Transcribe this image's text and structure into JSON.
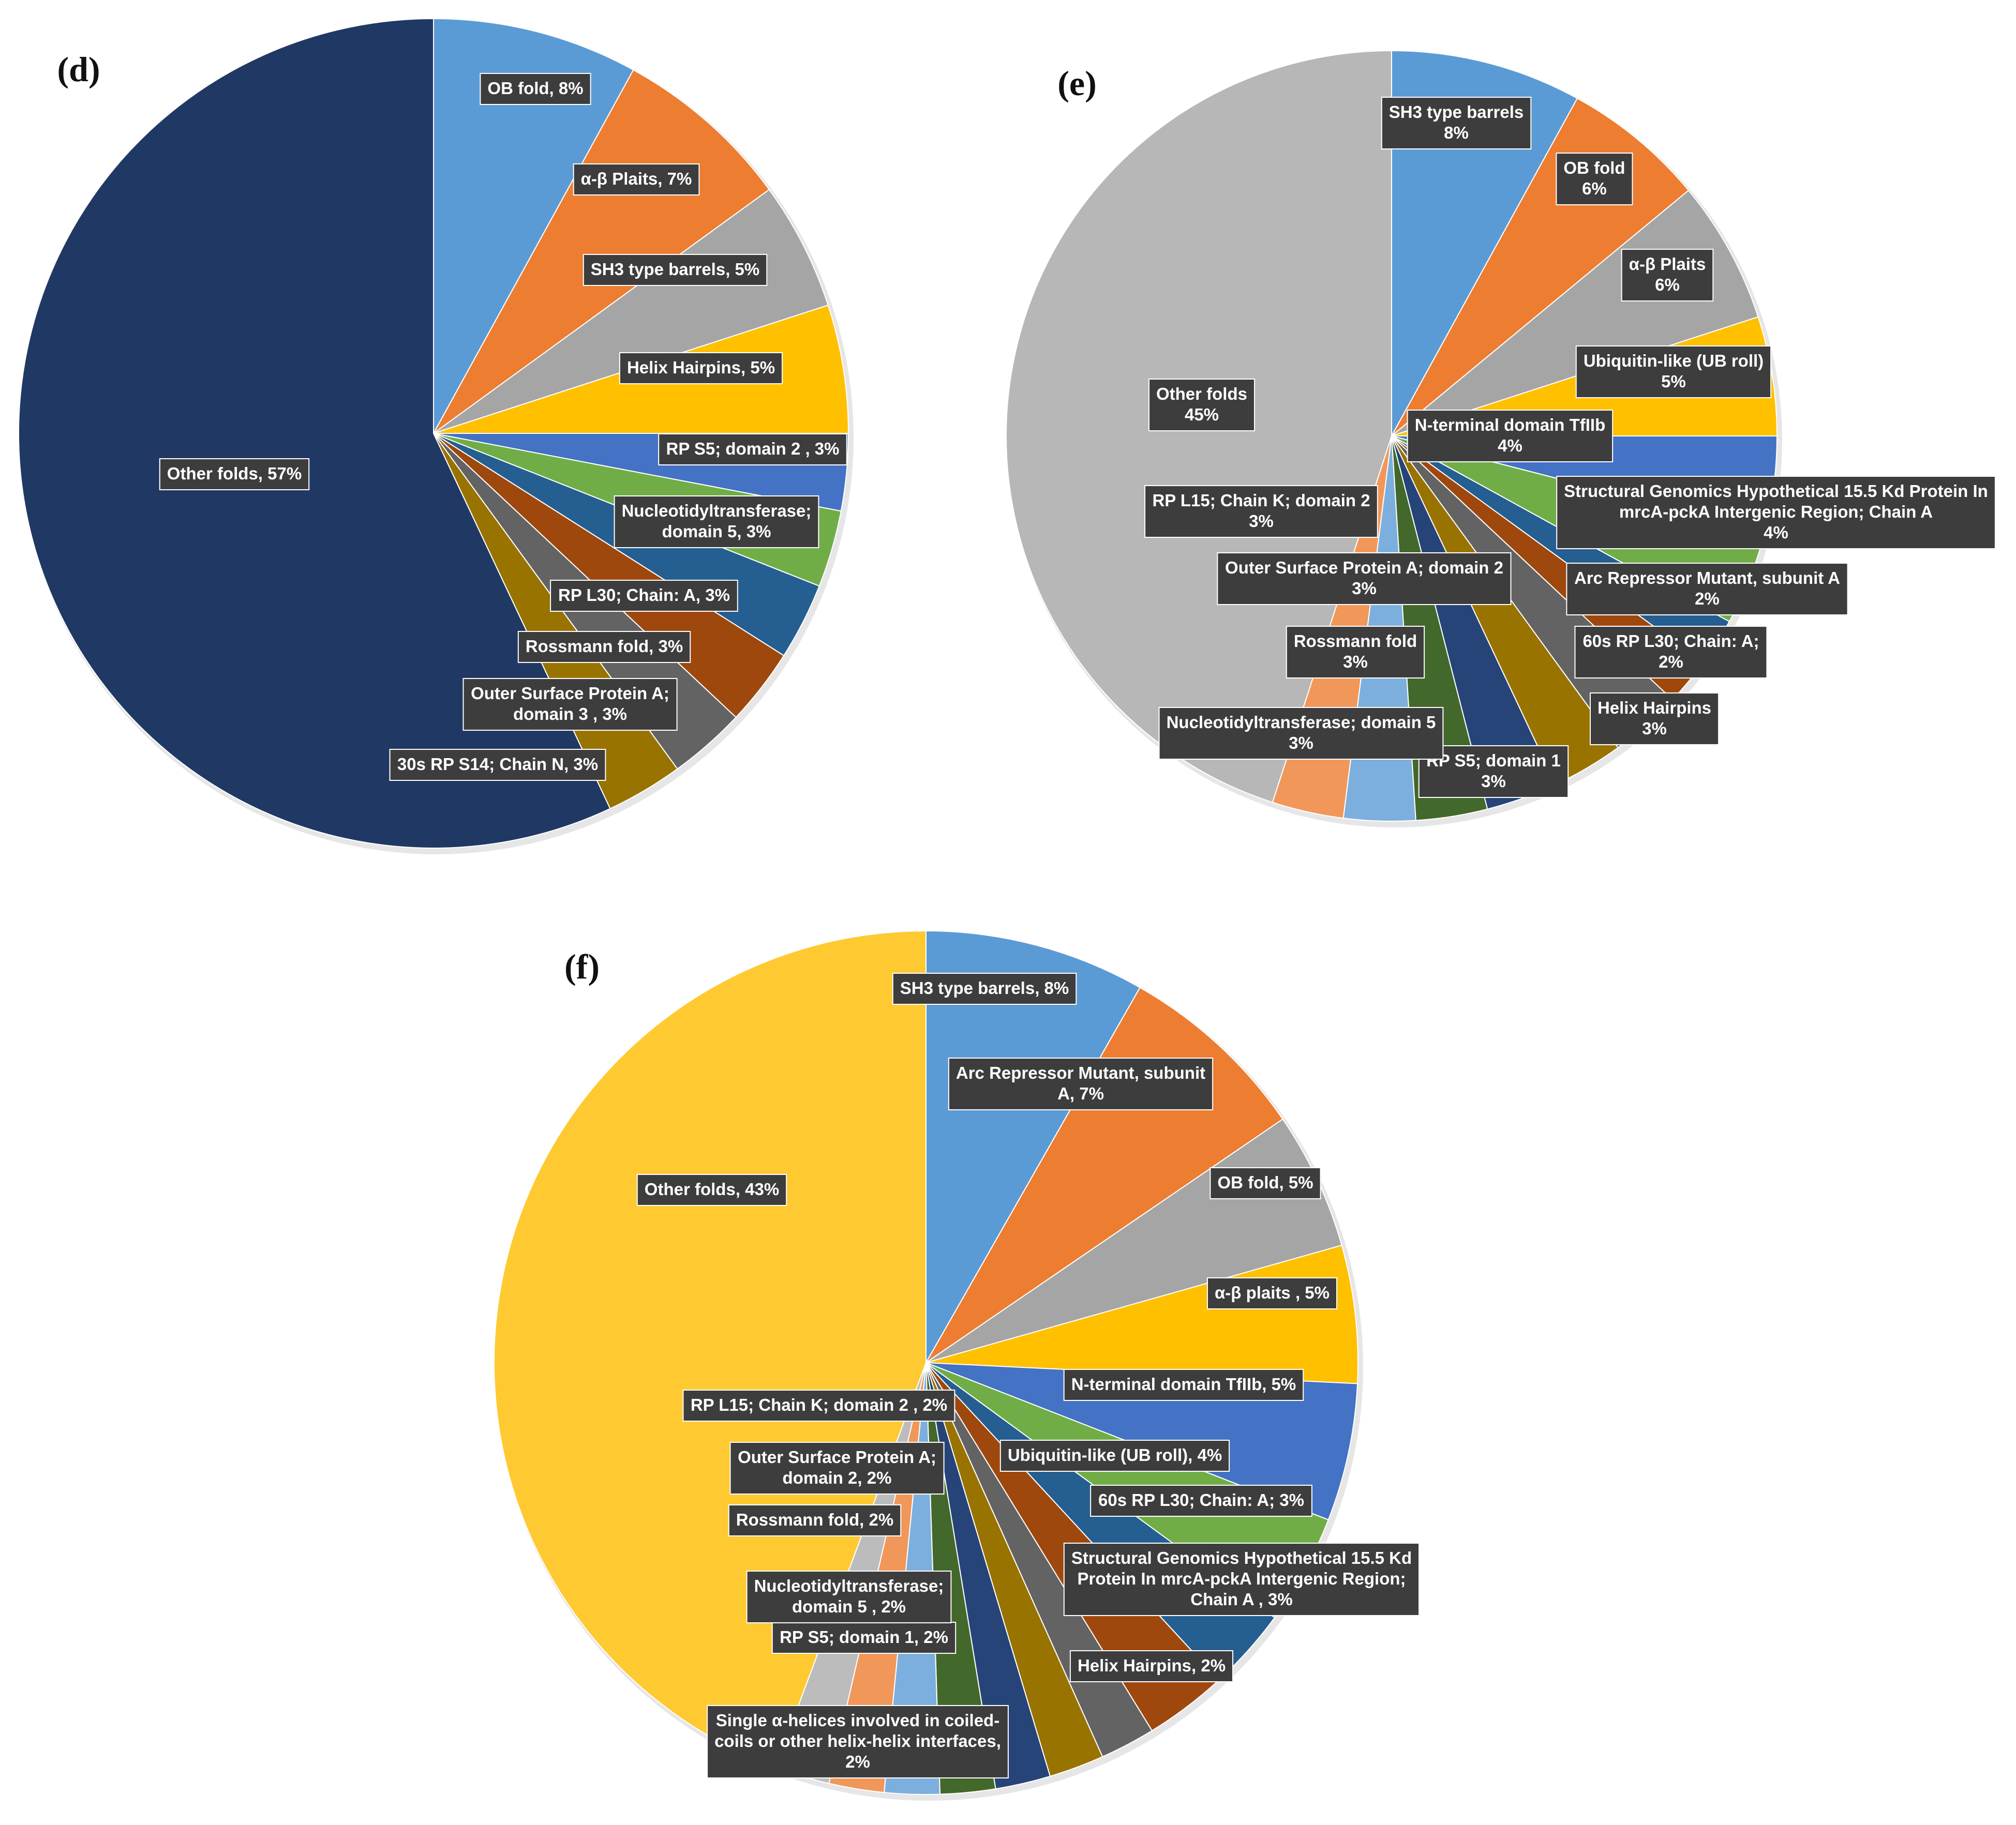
{
  "chart_data": [
    {
      "panel": "(d)",
      "type": "pie",
      "slices": [
        {
          "name": "OB fold",
          "value": 8,
          "color": "#5b9bd5",
          "label_lines": [
            "OB fold, 8%"
          ]
        },
        {
          "name": "α-β Plaits",
          "value": 7,
          "color": "#ed7d31",
          "label_lines": [
            "α-β Plaits, 7%"
          ]
        },
        {
          "name": "SH3 type barrels",
          "value": 5,
          "color": "#a5a5a5",
          "label_lines": [
            "SH3 type barrels, 5%"
          ]
        },
        {
          "name": "Helix Hairpins",
          "value": 5,
          "color": "#ffc000",
          "label_lines": [
            "Helix Hairpins, 5%"
          ]
        },
        {
          "name": "RP S5; domain 2",
          "value": 3,
          "color": "#4472c4",
          "label_lines": [
            "RP S5; domain 2 , 3%"
          ]
        },
        {
          "name": "Nucleotidyltransferase; domain 5",
          "value": 3,
          "color": "#70ad47",
          "label_lines": [
            "Nucleotidyltransferase;",
            "domain 5, 3%"
          ]
        },
        {
          "name": "RP L30; Chain: A",
          "value": 3,
          "color": "#255e91",
          "label_lines": [
            "RP L30; Chain: A, 3%"
          ]
        },
        {
          "name": "Rossmann fold",
          "value": 3,
          "color": "#9e480e",
          "label_lines": [
            "Rossmann fold, 3%"
          ]
        },
        {
          "name": "Outer Surface Protein A; domain 3",
          "value": 3,
          "color": "#636363",
          "label_lines": [
            "Outer Surface Protein A;",
            "domain 3 , 3%"
          ]
        },
        {
          "name": "30s RP S14; Chain N",
          "value": 3,
          "color": "#997300",
          "label_lines": [
            "30s RP S14; Chain N, 3%"
          ]
        },
        {
          "name": "Other folds",
          "value": 57,
          "color": "#203864",
          "label_lines": [
            "Other folds, 57%"
          ]
        }
      ]
    },
    {
      "panel": "(e)",
      "type": "pie",
      "slices": [
        {
          "name": "SH3 type barrels",
          "value": 8,
          "color": "#5b9bd5",
          "label_lines": [
            "SH3 type barrels",
            "8%"
          ]
        },
        {
          "name": "OB fold",
          "value": 6,
          "color": "#ed7d31",
          "label_lines": [
            "OB fold",
            "6%"
          ]
        },
        {
          "name": "α-β Plaits",
          "value": 6,
          "color": "#a5a5a5",
          "label_lines": [
            "α-β Plaits",
            "6%"
          ]
        },
        {
          "name": "Ubiquitin-like (UB roll)",
          "value": 5,
          "color": "#ffc000",
          "label_lines": [
            "Ubiquitin-like (UB roll)",
            "5%"
          ]
        },
        {
          "name": "N-terminal domain TfIIb",
          "value": 4,
          "color": "#4472c4",
          "label_lines": [
            "N-terminal domain TfIIb",
            "4%"
          ]
        },
        {
          "name": "Structural Genomics Hypothetical 15.5 Kd Protein In mrcA-pckA Intergenic Region; Chain A",
          "value": 4,
          "color": "#70ad47",
          "label_lines": [
            "Structural Genomics Hypothetical 15.5 Kd Protein In",
            "mrcA-pckA Intergenic Region; Chain A",
            "4%"
          ]
        },
        {
          "name": "Arc Repressor Mutant, subunit A",
          "value": 2,
          "color": "#255e91",
          "label_lines": [
            "Arc Repressor Mutant, subunit A",
            "2%"
          ]
        },
        {
          "name": "60s RP L30; Chain: A",
          "value": 2,
          "color": "#9e480e",
          "label_lines": [
            "60s RP L30; Chain: A;",
            "2%"
          ]
        },
        {
          "name": "Helix Hairpins",
          "value": 3,
          "color": "#636363",
          "label_lines": [
            "Helix Hairpins",
            "3%"
          ]
        },
        {
          "name": "RP S5; domain 1",
          "value": 3,
          "color": "#997300",
          "label_lines": [
            "RP S5; domain 1",
            "3%"
          ]
        },
        {
          "name": "Nucleotidyltransferase; domain 5",
          "value": 3,
          "color": "#264478",
          "label_lines": [
            "Nucleotidyltransferase; domain 5",
            "3%"
          ]
        },
        {
          "name": "Rossmann fold",
          "value": 3,
          "color": "#43682b",
          "label_lines": [
            "Rossmann fold",
            "3%"
          ]
        },
        {
          "name": "Outer Surface Protein A; domain 2",
          "value": 3,
          "color": "#7cafdd",
          "label_lines": [
            "Outer Surface Protein A; domain 2",
            "3%"
          ]
        },
        {
          "name": "RP L15; Chain K; domain 2",
          "value": 3,
          "color": "#f1975a",
          "label_lines": [
            "RP L15; Chain K; domain 2",
            "3%"
          ]
        },
        {
          "name": "Other folds",
          "value": 45,
          "color": "#b7b7b7",
          "label_lines": [
            "Other folds",
            "45%"
          ]
        }
      ]
    },
    {
      "panel": "(f)",
      "type": "pie",
      "slices": [
        {
          "name": "SH3 type barrels",
          "value": 8,
          "color": "#5b9bd5",
          "label_lines": [
            "SH3 type barrels, 8%"
          ]
        },
        {
          "name": "Arc Repressor Mutant, subunit A",
          "value": 7,
          "color": "#ed7d31",
          "label_lines": [
            "Arc Repressor Mutant, subunit",
            "A, 7%"
          ]
        },
        {
          "name": "OB fold",
          "value": 5,
          "color": "#a5a5a5",
          "label_lines": [
            "OB fold, 5%"
          ]
        },
        {
          "name": "α-β plaits",
          "value": 5,
          "color": "#ffc000",
          "label_lines": [
            "α-β plaits , 5%"
          ]
        },
        {
          "name": "N-terminal domain TfIIb",
          "value": 5,
          "color": "#4472c4",
          "label_lines": [
            "N-terminal domain TfIIb, 5%"
          ]
        },
        {
          "name": "Ubiquitin-like (UB roll)",
          "value": 4,
          "color": "#70ad47",
          "label_lines": [
            "Ubiquitin-like (UB roll), 4%"
          ]
        },
        {
          "name": "60s RP L30; Chain: A",
          "value": 3,
          "color": "#255e91",
          "label_lines": [
            "60s RP L30; Chain: A; 3%"
          ]
        },
        {
          "name": "Structural Genomics Hypothetical 15.5 Kd Protein In mrcA-pckA Intergenic Region; Chain A",
          "value": 3,
          "color": "#9e480e",
          "label_lines": [
            "Structural Genomics Hypothetical 15.5 Kd",
            "Protein In mrcA-pckA Intergenic Region;",
            "Chain A , 3%"
          ]
        },
        {
          "name": "Helix Hairpins",
          "value": 2,
          "color": "#636363",
          "label_lines": [
            "Helix Hairpins, 2%"
          ]
        },
        {
          "name": "Single α-helices involved in coiled-coils or other helix-helix interfaces",
          "value": 2,
          "color": "#997300",
          "label_lines": [
            "Single α-helices involved in coiled-",
            "coils or other helix-helix interfaces,",
            "2%"
          ]
        },
        {
          "name": "RP S5; domain 1",
          "value": 2,
          "color": "#264478",
          "label_lines": [
            "RP S5; domain 1, 2%"
          ]
        },
        {
          "name": "Nucleotidyltransferase; domain 5",
          "value": 2,
          "color": "#43682b",
          "label_lines": [
            "Nucleotidyltransferase;",
            "domain 5 , 2%"
          ]
        },
        {
          "name": "Rossmann fold",
          "value": 2,
          "color": "#7cafdd",
          "label_lines": [
            "Rossmann fold, 2%"
          ]
        },
        {
          "name": "Outer Surface Protein A; domain 2",
          "value": 2,
          "color": "#f1975a",
          "label_lines": [
            "Outer Surface Protein A;",
            "domain 2, 2%"
          ]
        },
        {
          "name": "RP L15; Chain K; domain 2",
          "value": 2,
          "color": "#bcbcbc",
          "label_lines": [
            "RP L15; Chain K; domain 2 , 2%"
          ]
        },
        {
          "name": "Other folds",
          "value": 43,
          "color": "#ffc932",
          "label_lines": [
            "Other folds, 43%"
          ]
        }
      ]
    }
  ]
}
